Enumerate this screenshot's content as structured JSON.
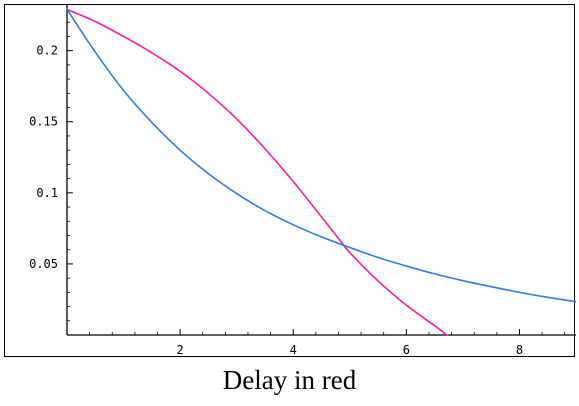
{
  "caption": "Delay in red",
  "chart_data": {
    "type": "line",
    "xlim": [
      0,
      9
    ],
    "ylim": [
      0,
      0.23
    ],
    "x_ticks": [
      2,
      4,
      6,
      8
    ],
    "x_tick_labels": [
      "2",
      "4",
      "6",
      "8"
    ],
    "y_ticks": [
      0.05,
      0.1,
      0.15,
      0.2
    ],
    "y_tick_labels": [
      "0.05",
      "0.1",
      "0.15",
      "0.2"
    ],
    "grid": false,
    "legend": "none",
    "series": [
      {
        "color": "#ff1aa0",
        "x": [
          0,
          0.5,
          1,
          1.5,
          2,
          2.5,
          3,
          3.5,
          4,
          4.5,
          4.8,
          5,
          5.5,
          6,
          6.5,
          6.72
        ],
        "y": [
          0.229,
          0.2205,
          0.21,
          0.1985,
          0.1855,
          0.17,
          0.152,
          0.131,
          0.108,
          0.083,
          0.068,
          0.058,
          0.038,
          0.021,
          0.0065,
          0.0
        ]
      },
      {
        "color": "#2b7fe8",
        "x": [
          0,
          0.5,
          1,
          1.5,
          2,
          2.5,
          3,
          3.5,
          4,
          4.5,
          5,
          5.5,
          6,
          6.5,
          7,
          7.5,
          8,
          8.5,
          9
        ],
        "y": [
          0.229,
          0.199,
          0.172,
          0.1495,
          0.13,
          0.1135,
          0.0995,
          0.0875,
          0.0775,
          0.069,
          0.0615,
          0.0545,
          0.0485,
          0.043,
          0.0382,
          0.034,
          0.03,
          0.0265,
          0.0234
        ]
      }
    ]
  }
}
